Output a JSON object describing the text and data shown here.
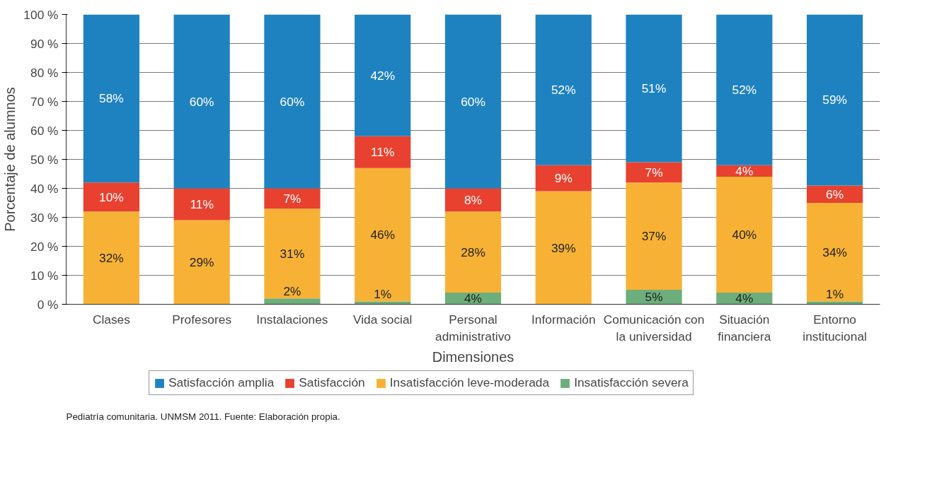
{
  "chart_data": {
    "type": "bar",
    "stacked": true,
    "xlabel": "Dimensiones",
    "ylabel": "Porcentaje de alumnos",
    "categories": [
      "Clases",
      "Profesores",
      "Instalaciones",
      "Vida social",
      "Personal administrativo",
      "Información",
      "Comunicación con la universidad",
      "Situación financiera",
      "Entorno institucional"
    ],
    "series": [
      {
        "name": "Insatisfacción severa",
        "color": "#6dae7c",
        "values": [
          0,
          0,
          2,
          1,
          4,
          0,
          5,
          4,
          1
        ],
        "value_labels": [
          null,
          null,
          "2%",
          "1%",
          "4%",
          null,
          "5%",
          "4%",
          "1%"
        ]
      },
      {
        "name": "Insatisfacción leve-moderada",
        "color": "#f7b236",
        "values": [
          32,
          29,
          31,
          46,
          28,
          39,
          37,
          40,
          34
        ],
        "value_labels": [
          "32%",
          "29%",
          "31%",
          "46%",
          "28%",
          "39%",
          "37%",
          "40%",
          "34%"
        ]
      },
      {
        "name": "Satisfacción",
        "color": "#e8412f",
        "values": [
          10,
          11,
          7,
          11,
          8,
          9,
          7,
          4,
          6
        ],
        "value_labels": [
          "10%",
          "11%",
          "7%",
          "11%",
          "8%",
          "9%",
          "7%",
          "4%",
          "6%"
        ]
      },
      {
        "name": "Satisfacción amplia",
        "color": "#1f82c0",
        "values": [
          58,
          60,
          60,
          42,
          60,
          52,
          51,
          52,
          59
        ],
        "value_labels": [
          "58%",
          "60%",
          "60%",
          "42%",
          "60%",
          "52%",
          "51%",
          "52%",
          "59%"
        ]
      }
    ],
    "ylim": [
      0,
      100
    ],
    "yticks": [
      {
        "value": 0,
        "label": "0 %"
      },
      {
        "value": 10,
        "label": "10 %"
      },
      {
        "value": 20,
        "label": "20 %"
      },
      {
        "value": 30,
        "label": "30 %"
      },
      {
        "value": 40,
        "label": "40 %"
      },
      {
        "value": 50,
        "label": "50 %"
      },
      {
        "value": 60,
        "label": "60 %"
      },
      {
        "value": 70,
        "label": "70 %"
      },
      {
        "value": 80,
        "label": "80 %"
      },
      {
        "value": 90,
        "label": "90 %"
      },
      {
        "value": 100,
        "label": "100 %"
      }
    ],
    "grid": "y",
    "legend": "bottom",
    "annotations": [
      "Pediatría comunitaria. UNMSM 2011. Fuente: Elaboración propia."
    ]
  }
}
